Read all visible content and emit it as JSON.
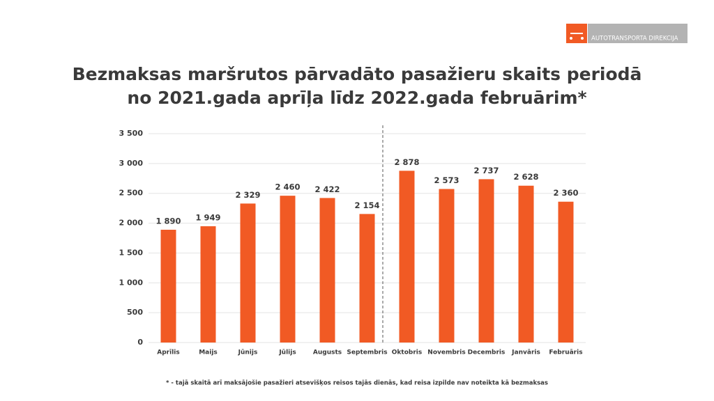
{
  "brand": "AUTOTRANSPORTA DIREKCIJA",
  "chart_data": {
    "type": "bar",
    "title": [
      "Bezmaksas maršrutos pārvadāto pasažieru skaits periodā",
      "no 2021.gada aprīļa līdz 2022.gada februārim*"
    ],
    "categories": [
      "Aprīlis",
      "Maijs",
      "Jūnijs",
      "Jūlijs",
      "Augusts",
      "Septembris",
      "Oktobris",
      "Novembris",
      "Decembris",
      "Janvāris",
      "Februāris"
    ],
    "values": [
      1890,
      1949,
      2329,
      2460,
      2422,
      2154,
      2878,
      2573,
      2737,
      2628,
      2360
    ],
    "value_labels": [
      "1 890",
      "1 949",
      "2 329",
      "2 460",
      "2 422",
      "2 154",
      "2 878",
      "2 573",
      "2 737",
      "2 628",
      "2 360"
    ],
    "color": "#f15a24",
    "ylim": [
      0,
      3500
    ],
    "yticks": [
      0,
      500,
      {
        "value": 1000,
        "label": "1 000"
      },
      {
        "value": 1500,
        "label": "1 500"
      },
      {
        "value": 2000,
        "label": "2 000"
      },
      {
        "value": 2500,
        "label": "2 500"
      },
      {
        "value": 3000,
        "label": "3 000"
      },
      {
        "value": 3500,
        "label": "3 500"
      }
    ],
    "grid": true,
    "footnote": "* - tajā skaitā arī maksājošie pasažieri atsevišķos reisos tajās dienās, kad reisa izpilde nav noteikta kā bezmaksas"
  }
}
